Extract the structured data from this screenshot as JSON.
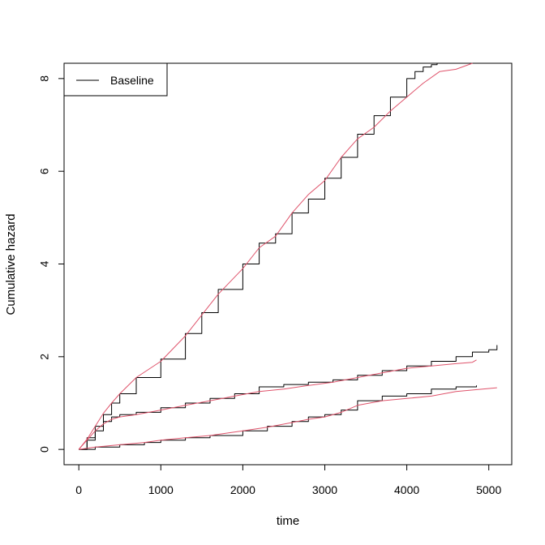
{
  "chart_data": {
    "type": "line",
    "title": "",
    "xlabel": "time",
    "ylabel": "Cumulative hazard",
    "xlim": [
      -180,
      5280
    ],
    "ylim": [
      -0.33,
      8.33
    ],
    "x_ticks": [
      0,
      1000,
      2000,
      3000,
      4000,
      5000
    ],
    "y_ticks": [
      0,
      2,
      4,
      6,
      8
    ],
    "grid": false,
    "legend": {
      "position": "top-left",
      "entries": [
        {
          "label": "Baseline",
          "color": "#000000"
        }
      ]
    },
    "colors": {
      "black": "#000000",
      "red": "#DF536B"
    },
    "series": [
      {
        "color": "#000000",
        "step": true,
        "x": [
          0,
          100,
          200,
          300,
          400,
          500,
          700,
          1000,
          1300,
          1500,
          1700,
          2000,
          2200,
          2400,
          2600,
          2800,
          3000,
          3200,
          3400,
          3600,
          3800,
          4000,
          4100,
          4200,
          4300,
          4370
        ],
        "y": [
          0,
          0.25,
          0.5,
          0.75,
          1.0,
          1.2,
          1.55,
          1.95,
          2.5,
          2.95,
          3.45,
          4.0,
          4.45,
          4.65,
          5.1,
          5.4,
          5.85,
          6.3,
          6.8,
          7.2,
          7.6,
          8.0,
          8.15,
          8.25,
          8.3,
          8.33
        ]
      },
      {
        "color": "#DF536B",
        "step": false,
        "x": [
          0,
          100,
          200,
          300,
          400,
          500,
          700,
          1000,
          1300,
          1500,
          1700,
          2000,
          2200,
          2400,
          2600,
          2800,
          3000,
          3200,
          3400,
          3600,
          3800,
          4000,
          4200,
          4400,
          4600,
          4800
        ],
        "y": [
          0,
          0.22,
          0.5,
          0.78,
          1.0,
          1.2,
          1.55,
          1.9,
          2.45,
          2.9,
          3.35,
          3.9,
          4.35,
          4.6,
          5.1,
          5.5,
          5.8,
          6.3,
          6.7,
          6.95,
          7.3,
          7.6,
          7.9,
          8.15,
          8.2,
          8.33
        ]
      },
      {
        "color": "#000000",
        "step": true,
        "x": [
          0,
          100,
          200,
          300,
          400,
          500,
          700,
          1000,
          1300,
          1600,
          1900,
          2200,
          2500,
          2800,
          3100,
          3400,
          3700,
          4000,
          4300,
          4600,
          4800,
          5000,
          5100
        ],
        "y": [
          0,
          0.2,
          0.4,
          0.6,
          0.7,
          0.75,
          0.8,
          0.9,
          1.0,
          1.1,
          1.2,
          1.35,
          1.4,
          1.45,
          1.5,
          1.6,
          1.7,
          1.8,
          1.9,
          2.0,
          2.1,
          2.15,
          2.25
        ]
      },
      {
        "color": "#DF536B",
        "step": false,
        "x": [
          0,
          100,
          200,
          300,
          400,
          500,
          700,
          1000,
          1300,
          1600,
          1900,
          2200,
          2500,
          2800,
          3100,
          3400,
          3700,
          4000,
          4300,
          4600,
          4800,
          4850
        ],
        "y": [
          0,
          0.2,
          0.4,
          0.55,
          0.65,
          0.7,
          0.75,
          0.85,
          0.95,
          1.05,
          1.15,
          1.25,
          1.3,
          1.38,
          1.45,
          1.55,
          1.65,
          1.75,
          1.8,
          1.85,
          1.88,
          1.93
        ]
      },
      {
        "color": "#000000",
        "step": true,
        "x": [
          0,
          200,
          500,
          800,
          1000,
          1300,
          1600,
          2000,
          2300,
          2600,
          2800,
          3000,
          3200,
          3400,
          3700,
          4000,
          4300,
          4600,
          4850
        ],
        "y": [
          0,
          0.05,
          0.1,
          0.15,
          0.2,
          0.25,
          0.3,
          0.4,
          0.5,
          0.6,
          0.7,
          0.75,
          0.85,
          1.05,
          1.15,
          1.2,
          1.3,
          1.35,
          1.38
        ]
      },
      {
        "color": "#DF536B",
        "step": false,
        "x": [
          0,
          200,
          500,
          800,
          1000,
          1300,
          1600,
          2000,
          2300,
          2600,
          2800,
          3000,
          3200,
          3400,
          3700,
          4000,
          4300,
          4600,
          5100
        ],
        "y": [
          0,
          0.05,
          0.1,
          0.15,
          0.2,
          0.25,
          0.3,
          0.4,
          0.48,
          0.58,
          0.65,
          0.7,
          0.8,
          0.95,
          1.05,
          1.1,
          1.15,
          1.25,
          1.33
        ]
      }
    ]
  }
}
